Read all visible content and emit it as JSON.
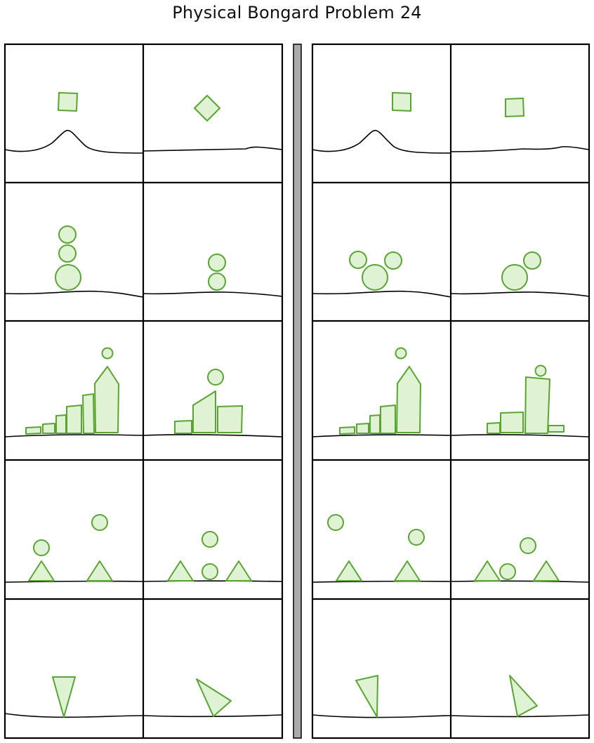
{
  "title": "Physical Bongard Problem 24",
  "colors": {
    "shape_fill": "#dff2d4",
    "shape_stroke": "#5aa532",
    "frame": "#000000",
    "divider_fill": "#aaaaaa"
  }
}
